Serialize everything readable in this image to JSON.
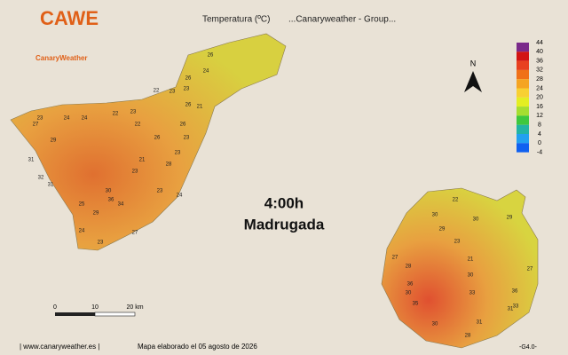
{
  "header": {
    "logo_top": "CAWE",
    "logo_bottom": "CanaryWeather",
    "title": "Temperatura (ºC)",
    "group": "...Canaryweather - Group..."
  },
  "time": {
    "hour": "4:00h",
    "period": "Madrugada"
  },
  "north": "N",
  "scale": {
    "labels": [
      "0",
      "10",
      "20 km"
    ]
  },
  "legend": {
    "ticks": [
      "44",
      "40",
      "36",
      "32",
      "28",
      "24",
      "20",
      "16",
      "12",
      "8",
      "4",
      "0",
      "-4"
    ],
    "colors": [
      "#7a2a8a",
      "#d21414",
      "#e84020",
      "#f07018",
      "#f5a422",
      "#f8d032",
      "#e4ee22",
      "#a6de30",
      "#3ec83e",
      "#22b4a4",
      "#22a0f0",
      "#1060f0"
    ]
  },
  "stations": [
    "26",
    "24",
    "23",
    "22",
    "23",
    "26",
    "26",
    "21",
    "26",
    "23",
    "23",
    "26",
    "28",
    "23",
    "24",
    "22",
    "23",
    "22",
    "24",
    "24",
    "23",
    "27",
    "29",
    "31",
    "32",
    "31",
    "30",
    "36",
    "34",
    "25",
    "29",
    "24",
    "23",
    "27",
    "23",
    "21",
    "22",
    "30",
    "30",
    "29",
    "23",
    "21",
    "30",
    "31",
    "36",
    "33",
    "29",
    "27",
    "33",
    "30",
    "36",
    "35",
    "31",
    "28",
    "30",
    "27",
    "28"
  ],
  "footer": {
    "site": "| www.canaryweather.es |",
    "made": "Mapa elaborado el 05 agosto de 2026",
    "version": "-G4.0-"
  }
}
